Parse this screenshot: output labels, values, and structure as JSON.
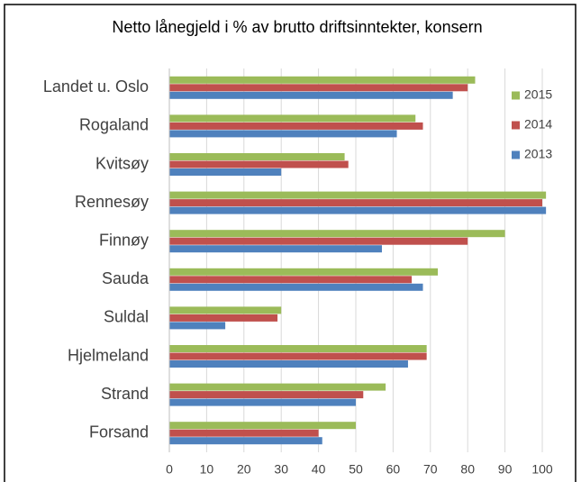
{
  "chart_data": {
    "type": "bar",
    "orientation": "horizontal",
    "title": "Netto lånegjeld i % av brutto driftsinntekter, konsern",
    "categories": [
      "Landet u. Oslo",
      "Rogaland",
      "Kvitsøy",
      "Rennesøy",
      "Finnøy",
      "Sauda",
      "Suldal",
      "Hjelmeland",
      "Strand",
      "Forsand"
    ],
    "series": [
      {
        "name": "2015",
        "color": "#9bbb59",
        "values": [
          82,
          66,
          47,
          101,
          90,
          72,
          30,
          69,
          58,
          50
        ]
      },
      {
        "name": "2014",
        "color": "#c0504d",
        "values": [
          80,
          68,
          48,
          100,
          80,
          65,
          29,
          69,
          52,
          40
        ]
      },
      {
        "name": "2013",
        "color": "#4f81bd",
        "values": [
          76,
          61,
          30,
          101,
          57,
          68,
          15,
          64,
          50,
          41
        ]
      }
    ],
    "xlim": [
      0,
      100
    ],
    "xticks": [
      0,
      10,
      20,
      30,
      40,
      50,
      60,
      70,
      80,
      90,
      100
    ],
    "grid": true,
    "legend": "top-right"
  }
}
